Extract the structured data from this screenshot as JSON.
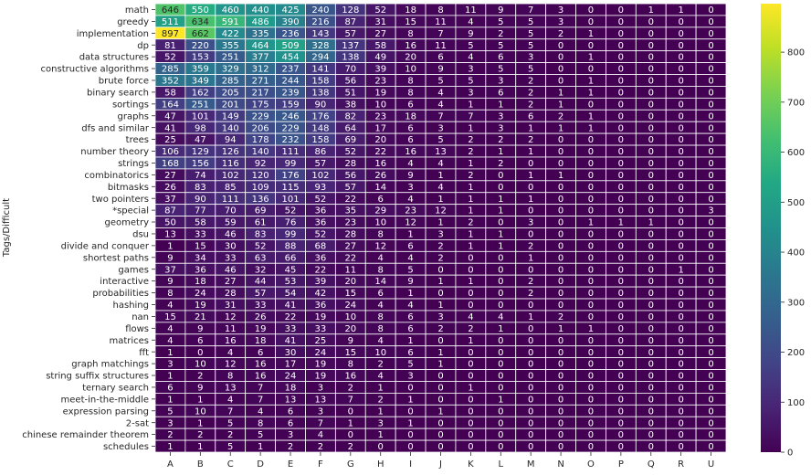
{
  "chart_data": {
    "type": "heatmap",
    "ylabel": "Tags/Difficult",
    "xlabel": "",
    "colormap": "viridis",
    "vmin": 0,
    "vmax": 897,
    "colorbar_ticks": [
      0,
      100,
      200,
      300,
      400,
      500,
      600,
      700,
      800
    ],
    "columns": [
      "A",
      "B",
      "C",
      "D",
      "E",
      "F",
      "G",
      "H",
      "I",
      "J",
      "K",
      "L",
      "M",
      "N",
      "O",
      "P",
      "Q",
      "R",
      "U"
    ],
    "rows": [
      "math",
      "greedy",
      "implementation",
      "dp",
      "data structures",
      "constructive algorithms",
      "brute force",
      "binary search",
      "sortings",
      "graphs",
      "dfs and similar",
      "trees",
      "number theory",
      "strings",
      "combinatorics",
      "bitmasks",
      "two pointers",
      "*special",
      "geometry",
      "dsu",
      "divide and conquer",
      "shortest paths",
      "games",
      "interactive",
      "probabilities",
      "hashing",
      "nan",
      "flows",
      "matrices",
      "fft",
      "graph matchings",
      "string suffix structures",
      "ternary search",
      "meet-in-the-middle",
      "expression parsing",
      "2-sat",
      "chinese remainder theorem",
      "schedules"
    ],
    "values": [
      [
        646,
        550,
        460,
        440,
        425,
        240,
        128,
        52,
        18,
        8,
        11,
        9,
        7,
        3,
        0,
        0,
        1,
        1,
        0
      ],
      [
        511,
        634,
        591,
        486,
        390,
        216,
        87,
        31,
        15,
        11,
        4,
        5,
        5,
        3,
        0,
        0,
        0,
        0,
        0
      ],
      [
        897,
        662,
        422,
        335,
        236,
        143,
        57,
        27,
        8,
        7,
        9,
        2,
        5,
        2,
        1,
        0,
        0,
        0,
        0
      ],
      [
        81,
        220,
        355,
        464,
        509,
        328,
        137,
        58,
        16,
        11,
        5,
        5,
        5,
        0,
        0,
        0,
        0,
        0,
        0
      ],
      [
        52,
        153,
        251,
        377,
        454,
        294,
        138,
        49,
        20,
        6,
        4,
        6,
        3,
        0,
        1,
        0,
        0,
        0,
        0
      ],
      [
        285,
        359,
        329,
        312,
        237,
        141,
        70,
        39,
        10,
        9,
        3,
        5,
        5,
        0,
        0,
        0,
        0,
        0,
        0
      ],
      [
        352,
        349,
        285,
        271,
        244,
        158,
        56,
        23,
        8,
        5,
        5,
        3,
        2,
        0,
        1,
        0,
        0,
        0,
        0
      ],
      [
        58,
        162,
        205,
        217,
        239,
        138,
        51,
        19,
        8,
        4,
        3,
        6,
        2,
        1,
        1,
        0,
        0,
        0,
        0
      ],
      [
        164,
        251,
        201,
        175,
        159,
        90,
        38,
        10,
        6,
        4,
        1,
        1,
        2,
        1,
        0,
        0,
        0,
        0,
        0
      ],
      [
        47,
        101,
        149,
        229,
        246,
        176,
        82,
        23,
        18,
        7,
        7,
        3,
        6,
        2,
        1,
        0,
        0,
        0,
        0
      ],
      [
        41,
        98,
        140,
        206,
        229,
        148,
        64,
        17,
        6,
        3,
        1,
        3,
        1,
        1,
        1,
        0,
        0,
        0,
        0
      ],
      [
        25,
        47,
        94,
        178,
        232,
        158,
        69,
        20,
        6,
        5,
        2,
        2,
        2,
        0,
        0,
        0,
        0,
        0,
        0
      ],
      [
        106,
        129,
        126,
        140,
        111,
        86,
        52,
        22,
        16,
        13,
        2,
        1,
        1,
        0,
        0,
        0,
        0,
        0,
        0
      ],
      [
        168,
        156,
        116,
        92,
        99,
        57,
        28,
        16,
        4,
        4,
        1,
        2,
        0,
        0,
        0,
        0,
        0,
        0,
        0
      ],
      [
        27,
        74,
        102,
        120,
        176,
        102,
        56,
        26,
        9,
        1,
        2,
        0,
        1,
        1,
        0,
        0,
        0,
        0,
        0
      ],
      [
        26,
        83,
        85,
        109,
        115,
        93,
        57,
        14,
        3,
        4,
        1,
        0,
        0,
        0,
        0,
        0,
        0,
        0,
        0
      ],
      [
        37,
        90,
        111,
        136,
        101,
        52,
        22,
        6,
        4,
        1,
        1,
        1,
        1,
        0,
        0,
        0,
        0,
        0,
        0
      ],
      [
        87,
        77,
        70,
        69,
        52,
        36,
        35,
        29,
        23,
        12,
        1,
        1,
        0,
        0,
        0,
        0,
        0,
        0,
        3
      ],
      [
        50,
        58,
        59,
        61,
        76,
        36,
        23,
        10,
        12,
        1,
        2,
        0,
        3,
        0,
        1,
        1,
        1,
        0,
        0
      ],
      [
        13,
        33,
        46,
        83,
        99,
        52,
        28,
        8,
        1,
        3,
        1,
        1,
        0,
        0,
        0,
        0,
        0,
        0,
        0
      ],
      [
        1,
        15,
        30,
        52,
        88,
        68,
        27,
        12,
        6,
        2,
        1,
        1,
        2,
        0,
        0,
        0,
        0,
        0,
        0
      ],
      [
        9,
        34,
        33,
        63,
        66,
        36,
        22,
        4,
        4,
        2,
        0,
        0,
        1,
        0,
        0,
        0,
        0,
        0,
        0
      ],
      [
        37,
        36,
        46,
        32,
        45,
        22,
        11,
        8,
        5,
        0,
        0,
        0,
        0,
        0,
        0,
        0,
        0,
        1,
        0
      ],
      [
        9,
        18,
        27,
        44,
        53,
        39,
        20,
        14,
        9,
        1,
        1,
        0,
        2,
        0,
        0,
        0,
        0,
        0,
        0
      ],
      [
        8,
        24,
        28,
        57,
        54,
        42,
        15,
        6,
        1,
        0,
        0,
        0,
        2,
        0,
        0,
        0,
        0,
        0,
        0
      ],
      [
        4,
        19,
        31,
        33,
        41,
        36,
        24,
        4,
        4,
        1,
        0,
        0,
        0,
        0,
        0,
        0,
        0,
        0,
        0
      ],
      [
        15,
        21,
        12,
        26,
        22,
        19,
        10,
        8,
        6,
        3,
        4,
        4,
        1,
        2,
        0,
        0,
        0,
        0,
        0
      ],
      [
        4,
        9,
        11,
        19,
        33,
        33,
        20,
        8,
        6,
        2,
        2,
        1,
        0,
        1,
        1,
        0,
        0,
        0,
        0
      ],
      [
        4,
        6,
        16,
        18,
        41,
        25,
        9,
        4,
        1,
        0,
        1,
        0,
        0,
        0,
        0,
        0,
        0,
        0,
        0
      ],
      [
        1,
        0,
        4,
        6,
        30,
        24,
        15,
        10,
        6,
        1,
        0,
        0,
        0,
        0,
        0,
        0,
        0,
        0,
        0
      ],
      [
        3,
        10,
        12,
        16,
        17,
        19,
        8,
        2,
        5,
        1,
        0,
        0,
        0,
        0,
        0,
        0,
        0,
        0,
        0
      ],
      [
        1,
        2,
        8,
        16,
        24,
        19,
        16,
        4,
        3,
        0,
        0,
        0,
        0,
        0,
        0,
        0,
        0,
        0,
        0
      ],
      [
        6,
        9,
        13,
        7,
        18,
        3,
        2,
        1,
        0,
        0,
        1,
        0,
        0,
        0,
        0,
        0,
        0,
        0,
        0
      ],
      [
        1,
        1,
        4,
        7,
        13,
        13,
        7,
        2,
        1,
        0,
        0,
        1,
        0,
        0,
        0,
        0,
        0,
        0,
        0
      ],
      [
        5,
        10,
        7,
        4,
        6,
        3,
        0,
        1,
        0,
        1,
        0,
        0,
        0,
        0,
        0,
        0,
        0,
        0,
        0
      ],
      [
        3,
        1,
        5,
        8,
        6,
        7,
        1,
        3,
        1,
        0,
        0,
        0,
        0,
        0,
        0,
        0,
        0,
        0,
        0
      ],
      [
        2,
        2,
        2,
        5,
        3,
        4,
        0,
        1,
        0,
        0,
        0,
        0,
        0,
        0,
        0,
        0,
        0,
        0,
        0
      ],
      [
        1,
        1,
        5,
        1,
        2,
        2,
        2,
        0,
        0,
        0,
        0,
        0,
        0,
        0,
        0,
        0,
        0,
        0,
        0
      ]
    ]
  }
}
